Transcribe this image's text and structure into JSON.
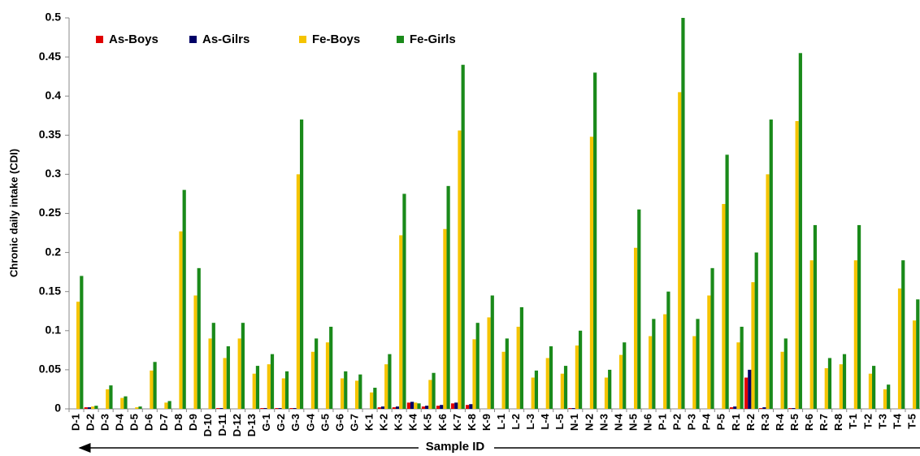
{
  "chart_data": {
    "type": "bar",
    "y_label": "Chronic daily intake (CDI)",
    "x_label": "Sample ID",
    "categories": [
      "D-1",
      "D-2",
      "D-3",
      "D-4",
      "D-5",
      "D-6",
      "D-7",
      "D-8",
      "D-9",
      "D-10",
      "D-11",
      "D-12",
      "D-13",
      "G-1",
      "G-2",
      "G-3",
      "G-4",
      "G-5",
      "G-6",
      "G-7",
      "K-1",
      "K-2",
      "K-3",
      "K-4",
      "K-5",
      "K-6",
      "K-7",
      "K-8",
      "K-9",
      "L-1",
      "L-2",
      "L-3",
      "L-4",
      "L-5",
      "N-1",
      "N-2",
      "N-3",
      "N-4",
      "N-5",
      "N-6",
      "P-1",
      "P-2",
      "P-3",
      "P-4",
      "P-5",
      "R-1",
      "R-2",
      "R-3",
      "R-4",
      "R-5",
      "R-6",
      "R-7",
      "R-8",
      "T-1",
      "T-2",
      "T-3",
      "T-4",
      "T-5"
    ],
    "series": [
      {
        "name": "As-Boys",
        "color": "#e00000",
        "values": [
          0,
          0.002,
          0,
          0,
          0,
          0,
          0,
          0,
          0,
          0,
          0.001,
          0,
          0,
          0.001,
          0.001,
          0.001,
          0,
          0,
          0,
          0,
          0,
          0.002,
          0.002,
          0.008,
          0.003,
          0.004,
          0.007,
          0.005,
          0,
          0,
          0,
          0,
          0,
          0,
          0.001,
          0,
          0,
          0,
          0,
          0,
          0,
          0,
          0,
          0,
          0,
          0.002,
          0.04,
          0.001,
          0,
          0.001,
          0,
          0,
          0,
          0,
          0,
          0,
          0,
          0
        ]
      },
      {
        "name": "As-Gilrs",
        "color": "#000066",
        "values": [
          0,
          0.002,
          0,
          0,
          0,
          0,
          0,
          0,
          0,
          0,
          0.001,
          0,
          0,
          0.001,
          0.001,
          0.001,
          0,
          0,
          0,
          0,
          0,
          0.003,
          0.003,
          0.009,
          0.004,
          0.005,
          0.008,
          0.006,
          0,
          0,
          0,
          0,
          0,
          0,
          0.001,
          0,
          0,
          0,
          0,
          0,
          0,
          0,
          0,
          0,
          0,
          0.003,
          0.05,
          0.002,
          0,
          0.001,
          0,
          0,
          0,
          0,
          0,
          0,
          0,
          0
        ]
      },
      {
        "name": "Fe-Boys",
        "color": "#f5c400",
        "values": [
          0.137,
          0.003,
          0.025,
          0.014,
          0.002,
          0.049,
          0.008,
          0.227,
          0.145,
          0.09,
          0.065,
          0.09,
          0.045,
          0.057,
          0.039,
          0.3,
          0.073,
          0.085,
          0.039,
          0.036,
          0.021,
          0.057,
          0.222,
          0.008,
          0.037,
          0.23,
          0.356,
          0.089,
          0.117,
          0.073,
          0.105,
          0.04,
          0.065,
          0.045,
          0.081,
          0.348,
          0.04,
          0.069,
          0.206,
          0.093,
          0.121,
          0.405,
          0.093,
          0.145,
          0.262,
          0.085,
          0.162,
          0.3,
          0.073,
          0.368,
          0.19,
          0.052,
          0.057,
          0.19,
          0.045,
          0.025,
          0.154,
          0.113
        ]
      },
      {
        "name": "Fe-Girls",
        "color": "#1a8a1a",
        "values": [
          0.17,
          0.004,
          0.03,
          0.016,
          0.003,
          0.06,
          0.01,
          0.28,
          0.18,
          0.11,
          0.08,
          0.11,
          0.055,
          0.07,
          0.048,
          0.37,
          0.09,
          0.105,
          0.048,
          0.044,
          0.027,
          0.07,
          0.275,
          0.007,
          0.046,
          0.285,
          0.44,
          0.11,
          0.145,
          0.09,
          0.13,
          0.049,
          0.08,
          0.055,
          0.1,
          0.43,
          0.05,
          0.085,
          0.255,
          0.115,
          0.15,
          0.5,
          0.115,
          0.18,
          0.325,
          0.105,
          0.2,
          0.37,
          0.09,
          0.455,
          0.235,
          0.065,
          0.07,
          0.235,
          0.055,
          0.031,
          0.19,
          0.14
        ]
      }
    ],
    "ylim": [
      0,
      0.5
    ],
    "yticks": [
      0,
      0.05,
      0.1,
      0.15,
      0.2,
      0.25,
      0.3,
      0.35,
      0.4,
      0.45,
      0.5
    ],
    "grid": false
  }
}
